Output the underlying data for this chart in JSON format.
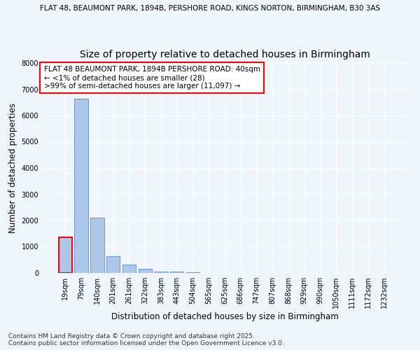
{
  "title_main": "FLAT 48, BEAUMONT PARK, 1894B, PERSHORE ROAD, KINGS NORTON, BIRMINGHAM, B30 3AS",
  "title_sub": "Size of property relative to detached houses in Birmingham",
  "xlabel": "Distribution of detached houses by size in Birmingham",
  "ylabel": "Number of detached properties",
  "categories": [
    "19sqm",
    "79sqm",
    "140sqm",
    "201sqm",
    "261sqm",
    "322sqm",
    "383sqm",
    "443sqm",
    "504sqm",
    "565sqm",
    "625sqm",
    "686sqm",
    "747sqm",
    "807sqm",
    "868sqm",
    "929sqm",
    "990sqm",
    "1050sqm",
    "1111sqm",
    "1172sqm",
    "1232sqm"
  ],
  "values": [
    1350,
    6650,
    2100,
    650,
    320,
    150,
    60,
    50,
    30,
    0,
    0,
    0,
    0,
    0,
    0,
    0,
    0,
    0,
    0,
    0,
    0
  ],
  "bar_color": "#aec6e8",
  "bar_edge_color": "#5a8ac6",
  "annotation_box_text": "FLAT 48 BEAUMONT PARK, 1894B PERSHORE ROAD: 40sqm\n← <1% of detached houses are smaller (28)\n>99% of semi-detached houses are larger (11,097) →",
  "annotation_box_edge_color": "red",
  "ylim": [
    0,
    8000
  ],
  "yticks": [
    0,
    1000,
    2000,
    3000,
    4000,
    5000,
    6000,
    7000,
    8000
  ],
  "footer_text": "Contains HM Land Registry data © Crown copyright and database right 2025.\nContains public sector information licensed under the Open Government Licence v3.0.",
  "bg_color": "#f0f4fb",
  "grid_color": "#ffffff",
  "title_fontsize": 7.5,
  "subtitle_fontsize": 10,
  "axis_label_fontsize": 8.5,
  "tick_fontsize": 7,
  "footer_fontsize": 6.5,
  "annotation_fontsize": 7.5
}
